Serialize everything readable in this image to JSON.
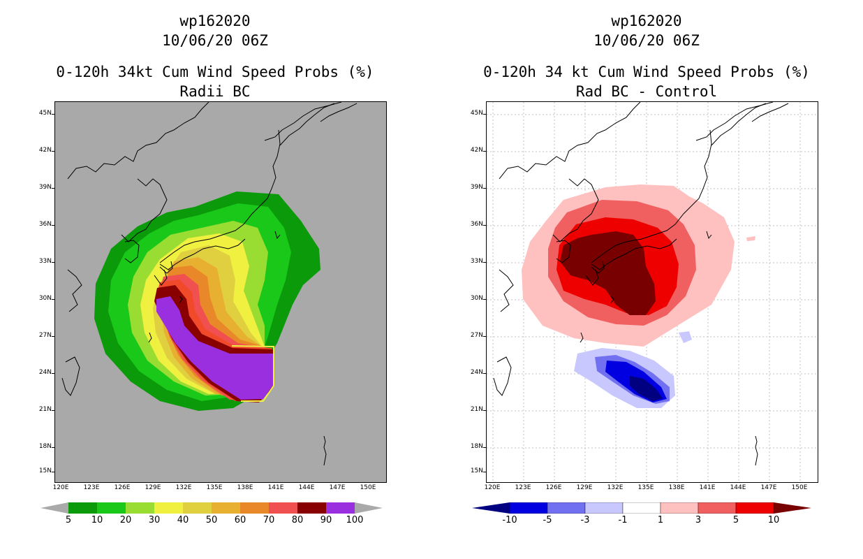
{
  "left": {
    "storm_id": "wp162020",
    "datetime": "10/06/20 06Z",
    "title": "0-120h 34kt Cum Wind Speed Probs (%)",
    "subtitle": "Radii BC",
    "background_color": "#a9a9a9",
    "colorbar": {
      "labels": [
        "5",
        "10",
        "20",
        "30",
        "40",
        "50",
        "60",
        "70",
        "80",
        "90",
        "100"
      ],
      "colors": [
        "#0a9a0a",
        "#1ac81a",
        "#99dd33",
        "#f0f040",
        "#e0d040",
        "#e8b030",
        "#e88828",
        "#f05050",
        "#880000",
        "#9a2fe0"
      ]
    }
  },
  "right": {
    "storm_id": "wp162020",
    "datetime": "10/06/20 06Z",
    "title": "0-120h 34 kt Cum Wind Speed Probs (%)",
    "subtitle": "Rad BC - Control",
    "background_color": "#ffffff",
    "colorbar": {
      "labels": [
        "-10",
        "-5",
        "-3",
        "-1",
        "1",
        "3",
        "5",
        "10"
      ],
      "colors": [
        "#000080",
        "#0000e0",
        "#7070f0",
        "#c8c8ff",
        "#ffffff",
        "#ffc0c0",
        "#f06060",
        "#ee0000",
        "#780000"
      ]
    }
  },
  "axes": {
    "lat_labels": [
      "45N",
      "42N",
      "39N",
      "36N",
      "33N",
      "30N",
      "27N",
      "24N",
      "21N",
      "18N",
      "15N"
    ],
    "lon_labels": [
      "120E",
      "123E",
      "126E",
      "129E",
      "132E",
      "135E",
      "138E",
      "141E",
      "144E",
      "147E",
      "150E"
    ]
  }
}
